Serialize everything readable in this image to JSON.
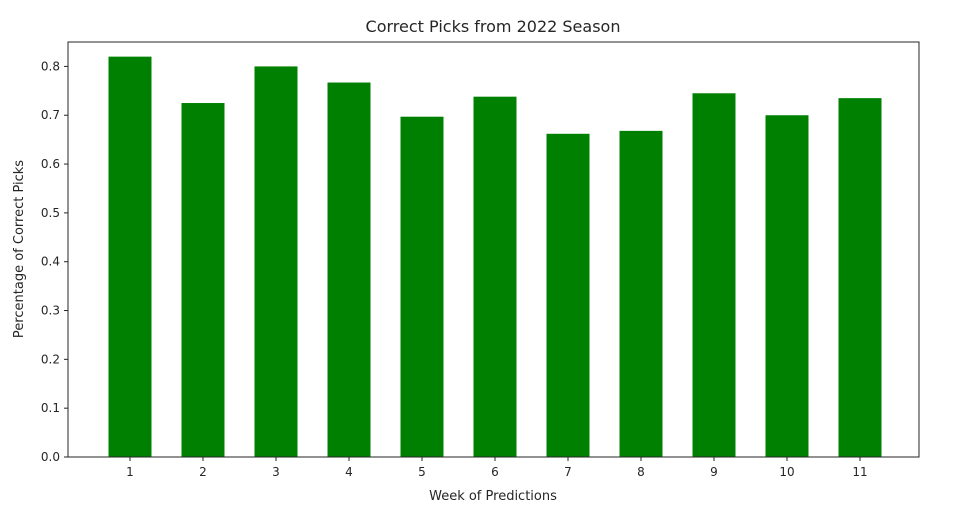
{
  "chart_data": {
    "type": "bar",
    "title": "Correct Picks from 2022 Season",
    "xlabel": "Week of Predictions",
    "ylabel": "Percentage of Correct Picks",
    "categories": [
      "1",
      "2",
      "3",
      "4",
      "5",
      "6",
      "7",
      "8",
      "9",
      "10",
      "11"
    ],
    "values": [
      0.82,
      0.725,
      0.8,
      0.767,
      0.697,
      0.738,
      0.662,
      0.668,
      0.745,
      0.7,
      0.735
    ],
    "ylim": [
      0,
      0.85
    ],
    "yticks": [
      "0.0",
      "0.1",
      "0.2",
      "0.3",
      "0.4",
      "0.5",
      "0.6",
      "0.7",
      "0.8"
    ],
    "grid": false,
    "legend": "none",
    "bar_color": "#008000",
    "axis_color": "#262626"
  }
}
